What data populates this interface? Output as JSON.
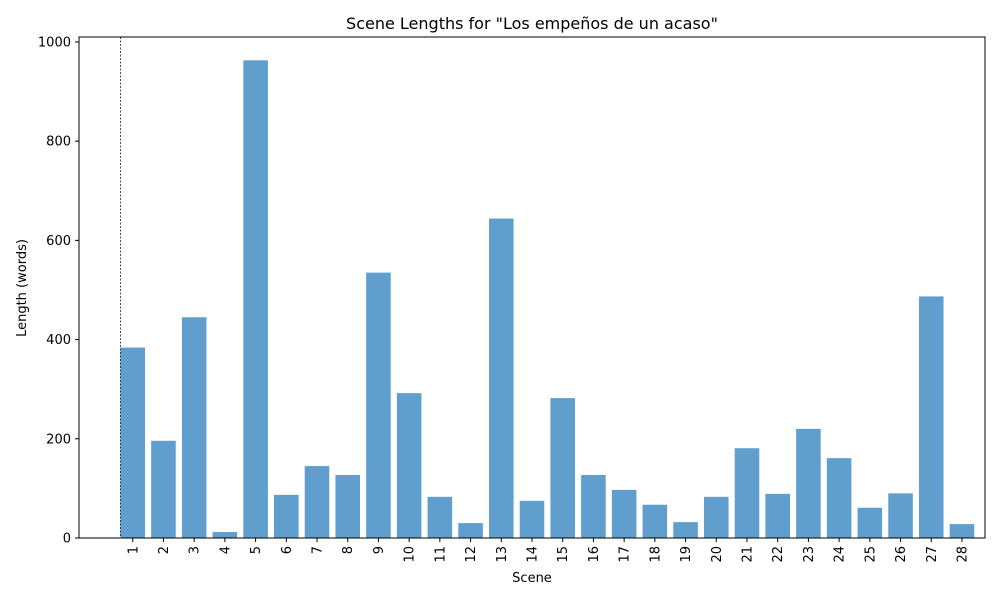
{
  "chart_data": {
    "type": "bar",
    "title": "Scene Lengths for \"Los empeños de un acaso\"",
    "xlabel": "Scene",
    "ylabel": "Length (words)",
    "ylim": [
      0,
      1010
    ],
    "yticks": [
      0,
      200,
      400,
      600,
      800,
      1000
    ],
    "categories": [
      "1",
      "2",
      "3",
      "4",
      "5",
      "6",
      "7",
      "8",
      "9",
      "10",
      "11",
      "12",
      "13",
      "14",
      "15",
      "16",
      "17",
      "18",
      "19",
      "20",
      "21",
      "22",
      "23",
      "24",
      "25",
      "26",
      "27",
      "28"
    ],
    "values": [
      384,
      196,
      445,
      12,
      963,
      87,
      145,
      127,
      535,
      292,
      83,
      30,
      644,
      75,
      282,
      127,
      97,
      67,
      32,
      83,
      181,
      89,
      220,
      161,
      61,
      90,
      487,
      28
    ],
    "bar_color": "#5f9ecd",
    "grid": false,
    "reference_line": {
      "x_position": "before-first-bar",
      "style": "dashed",
      "color": "#000000"
    }
  }
}
